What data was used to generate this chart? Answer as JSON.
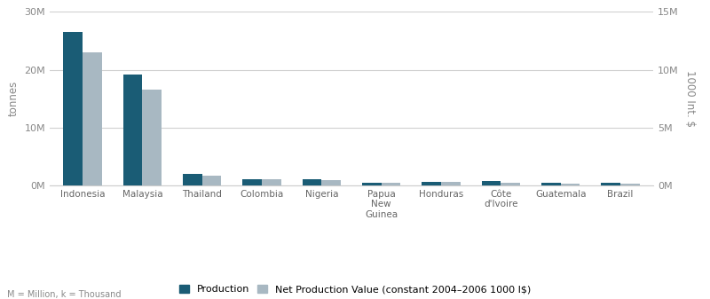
{
  "categories": [
    "Indonesia",
    "Malaysia",
    "Thailand",
    "Colombia",
    "Nigeria",
    "Papua\nNew\nGuinea",
    "Honduras",
    "Côte\nd'Ivoire",
    "Guatemala",
    "Brazil"
  ],
  "production": [
    26500000,
    19200000,
    2000000,
    1100000,
    1100000,
    480000,
    620000,
    720000,
    380000,
    390000
  ],
  "net_value": [
    23000000,
    16500000,
    1700000,
    1000000,
    980000,
    440000,
    560000,
    440000,
    340000,
    340000
  ],
  "bar_color_production": "#1a5c75",
  "bar_color_net": "#a8b8c2",
  "ylabel_left": "tonnes",
  "ylabel_right": "1000 Int. $",
  "ylim_left": [
    0,
    30000000
  ],
  "ylim_right": [
    0,
    15000000
  ],
  "yticks_left": [
    0,
    10000000,
    20000000,
    30000000
  ],
  "ytick_labels_left": [
    "0M",
    "10M",
    "20M",
    "30M"
  ],
  "yticks_right": [
    0,
    5000000,
    10000000,
    15000000
  ],
  "ytick_labels_right": [
    "0M",
    "5M",
    "10M",
    "15M"
  ],
  "legend_labels": [
    "Production",
    "Net Production Value (constant 2004–2006 1000 I$)"
  ],
  "footnote": "M = Million, k = Thousand",
  "background_color": "#ffffff",
  "grid_color": "#d0d0d0",
  "bar_width": 0.32
}
